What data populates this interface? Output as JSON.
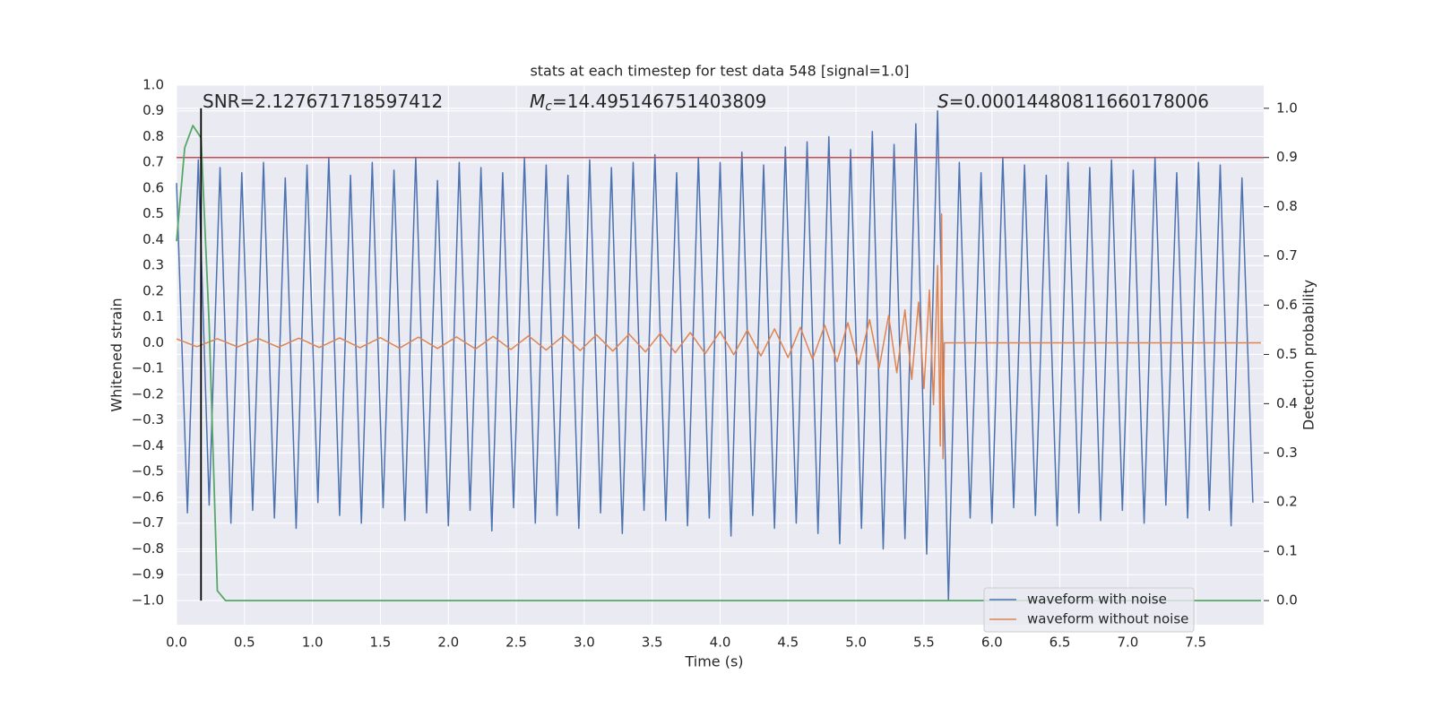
{
  "chart_data": {
    "type": "line",
    "title": "stats at each timestep for test data 548 [signal=1.0]",
    "xlabel": "Time (s)",
    "ylabel": "Whitened strain",
    "y2label": "Detection probability",
    "xlim": [
      0,
      8.0
    ],
    "ylim": [
      -1.094,
      1.0
    ],
    "y2lim": [
      -0.049,
      1.047
    ],
    "grid": true,
    "legend": "lower right",
    "xticks": [
      {
        "value": 0,
        "label": "0.0"
      },
      0.5,
      {
        "value": 1,
        "label": "1.0"
      },
      1.5,
      {
        "value": 2,
        "label": "2.0"
      },
      2.5,
      {
        "value": 3,
        "label": "3.0"
      },
      3.5,
      {
        "value": 4,
        "label": "4.0"
      },
      4.5,
      {
        "value": 5,
        "label": "5.0"
      },
      5.5,
      {
        "value": 6,
        "label": "6.0"
      },
      6.5,
      {
        "value": 7,
        "label": "7.0"
      },
      7.5
    ],
    "yticks": [
      {
        "value": 1,
        "label": "1.0"
      },
      0.9,
      0.8,
      0.7,
      0.6,
      0.5,
      0.4,
      0.3,
      0.2,
      0.1,
      {
        "value": 0,
        "label": "0.0"
      },
      {
        "value": -0.1,
        "label": "−0.1"
      },
      {
        "value": -0.2,
        "label": "−0.2"
      },
      {
        "value": -0.3,
        "label": "−0.3"
      },
      {
        "value": -0.4,
        "label": "−0.4"
      },
      {
        "value": -0.5,
        "label": "−0.5"
      },
      {
        "value": -0.6,
        "label": "−0.6"
      },
      {
        "value": -0.7,
        "label": "−0.7"
      },
      {
        "value": -0.8,
        "label": "−0.8"
      },
      {
        "value": -0.9,
        "label": "−0.9"
      },
      {
        "value": -1,
        "label": "−1.0"
      }
    ],
    "y2ticks": [
      {
        "value": 1,
        "label": "1.0"
      },
      0.9,
      0.8,
      0.7,
      0.6,
      0.5,
      0.4,
      0.3,
      0.2,
      0.1,
      {
        "value": 0,
        "label": "0.0"
      }
    ],
    "annotations": [
      {
        "text": "SNR=2.127671718597412"
      },
      {
        "symbol": "M",
        "subscript": "c",
        "text": "=14.495146751403809"
      },
      {
        "symbol": "S",
        "text": "=0.00014480811660178006"
      }
    ],
    "series": [
      {
        "name": "waveform with noise",
        "color": "#4c72b0",
        "x": [
          0,
          0.08,
          0.16,
          0.24,
          0.32,
          0.4,
          0.48,
          0.56,
          0.64,
          0.72,
          0.8,
          0.88,
          0.96,
          1.04,
          1.12,
          1.2,
          1.28,
          1.36,
          1.44,
          1.52,
          1.6,
          1.68,
          1.76,
          1.84,
          1.92,
          2,
          2.08,
          2.16,
          2.24,
          2.32,
          2.4,
          2.48,
          2.56,
          2.64,
          2.72,
          2.8,
          2.88,
          2.96,
          3.04,
          3.12,
          3.2,
          3.28,
          3.36,
          3.44,
          3.52,
          3.6,
          3.68,
          3.76,
          3.84,
          3.92,
          4,
          4.08,
          4.16,
          4.24,
          4.32,
          4.4,
          4.48,
          4.56,
          4.64,
          4.72,
          4.8,
          4.88,
          4.96,
          5.04,
          5.12,
          5.2,
          5.28,
          5.36,
          5.44,
          5.52,
          5.6,
          5.68,
          5.76,
          5.84,
          5.92,
          6,
          6.08,
          6.16,
          6.24,
          6.32,
          6.4,
          6.48,
          6.56,
          6.64,
          6.72,
          6.8,
          6.88,
          6.96,
          7.04,
          7.12,
          7.2,
          7.28,
          7.36,
          7.44,
          7.52,
          7.6,
          7.68,
          7.76,
          7.84,
          7.92
        ],
        "values": [
          0.62,
          -0.66,
          0.71,
          -0.63,
          0.68,
          -0.7,
          0.66,
          -0.65,
          0.7,
          -0.68,
          0.64,
          -0.72,
          0.69,
          -0.62,
          0.72,
          -0.67,
          0.65,
          -0.7,
          0.7,
          -0.64,
          0.67,
          -0.69,
          0.72,
          -0.66,
          0.63,
          -0.71,
          0.7,
          -0.65,
          0.68,
          -0.73,
          0.66,
          -0.64,
          0.72,
          -0.7,
          0.69,
          -0.67,
          0.65,
          -0.72,
          0.71,
          -0.66,
          0.68,
          -0.74,
          0.7,
          -0.65,
          0.73,
          -0.69,
          0.66,
          -0.71,
          0.72,
          -0.68,
          0.7,
          -0.75,
          0.74,
          -0.67,
          0.69,
          -0.72,
          0.76,
          -0.7,
          0.78,
          -0.74,
          0.8,
          -0.78,
          0.75,
          -0.72,
          0.82,
          -0.8,
          0.77,
          -0.76,
          0.85,
          -0.82,
          0.9,
          -1.0,
          0.7,
          -0.68,
          0.66,
          -0.7,
          0.72,
          -0.64,
          0.69,
          -0.67,
          0.65,
          -0.71,
          0.7,
          -0.66,
          0.68,
          -0.69,
          0.71,
          -0.65,
          0.67,
          -0.7,
          0.72,
          -0.63,
          0.66,
          -0.68,
          0.7,
          -0.65,
          0.69,
          -0.71,
          0.64,
          -0.62
        ]
      },
      {
        "name": "waveform without noise",
        "color": "#dd8452",
        "x": [
          0,
          0.15,
          0.3,
          0.45,
          0.6,
          0.75,
          0.9,
          1.05,
          1.2,
          1.35,
          1.5,
          1.64,
          1.78,
          1.92,
          2.06,
          2.2,
          2.33,
          2.46,
          2.59,
          2.72,
          2.85,
          2.97,
          3.09,
          3.21,
          3.33,
          3.45,
          3.56,
          3.67,
          3.78,
          3.89,
          4.0,
          4.1,
          4.2,
          4.3,
          4.4,
          4.5,
          4.59,
          4.68,
          4.77,
          4.86,
          4.94,
          5.02,
          5.1,
          5.17,
          5.24,
          5.3,
          5.36,
          5.41,
          5.46,
          5.5,
          5.54,
          5.57,
          5.6,
          5.62,
          5.63,
          5.64,
          5.65,
          7.98
        ],
        "values": [
          0.015,
          -0.015,
          0.016,
          -0.016,
          0.017,
          -0.017,
          0.018,
          -0.018,
          0.019,
          -0.019,
          0.02,
          -0.021,
          0.022,
          -0.022,
          0.023,
          -0.024,
          0.025,
          -0.026,
          0.027,
          -0.028,
          0.029,
          -0.03,
          0.031,
          -0.032,
          0.034,
          -0.035,
          0.037,
          -0.038,
          0.04,
          -0.042,
          0.044,
          -0.046,
          0.049,
          -0.051,
          0.054,
          -0.057,
          0.06,
          -0.064,
          0.068,
          -0.073,
          0.078,
          -0.084,
          0.09,
          -0.098,
          0.106,
          -0.116,
          0.128,
          -0.142,
          0.158,
          -0.178,
          0.205,
          -0.24,
          0.3,
          -0.4,
          0.5,
          -0.45,
          0,
          0
        ]
      }
    ],
    "probability": {
      "axis": "y2",
      "color": "#55a868",
      "x": [
        0,
        0.06,
        0.12,
        0.18,
        0.24,
        0.3,
        0.36,
        7.98
      ],
      "values": [
        0.73,
        0.92,
        0.965,
        0.94,
        0.56,
        0.02,
        0,
        0
      ]
    },
    "threshold": {
      "axis": "y2",
      "value": 0.9,
      "color": "#c44e52"
    },
    "marker_line": {
      "x": 0.18,
      "ymin": 0,
      "ymax": 1.0,
      "color": "#000000"
    }
  }
}
